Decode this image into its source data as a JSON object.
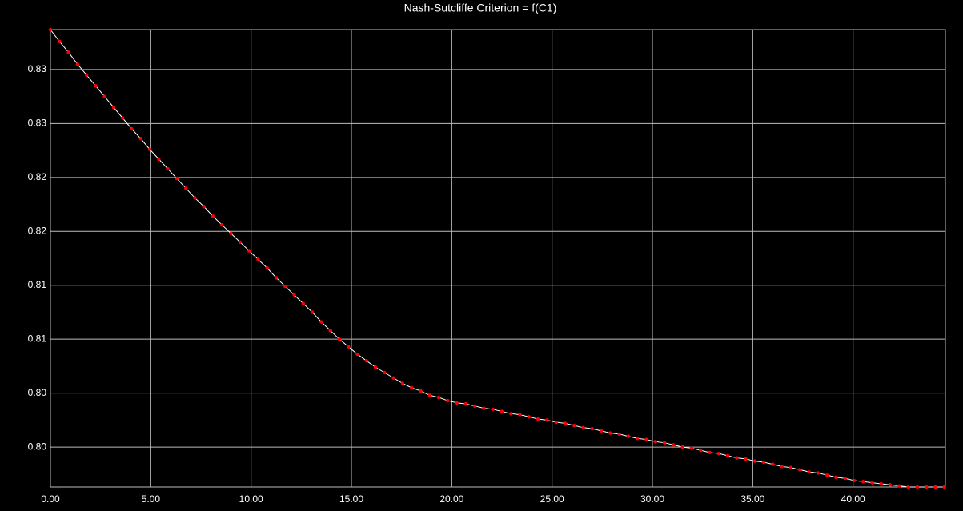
{
  "chart_data": {
    "type": "line",
    "title": "Nash-Sutcliffe Criterion = f(C1)",
    "x": [
      0,
      0.45,
      0.9,
      1.35,
      1.8,
      2.25,
      2.7,
      3.15,
      3.6,
      4.05,
      4.5,
      4.95,
      5.4,
      5.85,
      6.3,
      6.75,
      7.2,
      7.65,
      8.1,
      8.55,
      9,
      9.45,
      9.9,
      10.35,
      10.8,
      11.25,
      11.7,
      12.15,
      12.6,
      13.05,
      13.5,
      13.95,
      14.4,
      14.85,
      15.3,
      15.75,
      16.2,
      16.65,
      17.1,
      17.55,
      18,
      18.45,
      18.9,
      19.35,
      19.8,
      20.25,
      20.7,
      21.15,
      21.6,
      22.05,
      22.5,
      22.95,
      23.4,
      23.85,
      24.3,
      24.75,
      25.2,
      25.65,
      26.1,
      26.55,
      27,
      27.45,
      27.9,
      28.35,
      28.8,
      29.25,
      29.7,
      30.15,
      30.6,
      31.05,
      31.5,
      31.95,
      32.4,
      32.85,
      33.3,
      33.75,
      34.2,
      34.65,
      35.1,
      35.55,
      36,
      36.45,
      36.9,
      37.35,
      37.8,
      38.25,
      38.7,
      39.15,
      39.6,
      40.05,
      40.5,
      40.95,
      41.4,
      41.85,
      42.3,
      42.75,
      43.2,
      43.65,
      44.1,
      44.55
    ],
    "values": [
      0.8362,
      0.8351,
      0.8341,
      0.833,
      0.832,
      0.831,
      0.83,
      0.829,
      0.828,
      0.827,
      0.8261,
      0.8251,
      0.8242,
      0.8233,
      0.8224,
      0.8215,
      0.8206,
      0.8198,
      0.8189,
      0.8181,
      0.8173,
      0.8165,
      0.8157,
      0.8149,
      0.8141,
      0.8132,
      0.8124,
      0.8116,
      0.8108,
      0.81,
      0.8091,
      0.8083,
      0.8075,
      0.8068,
      0.8061,
      0.8055,
      0.8049,
      0.8044,
      0.8039,
      0.8034,
      0.803,
      0.8027,
      0.8023,
      0.8021,
      0.8018,
      0.8016,
      0.8015,
      0.8013,
      0.8011,
      0.801,
      0.8008,
      0.8006,
      0.8005,
      0.8003,
      0.8001,
      0.8,
      0.7998,
      0.7997,
      0.7995,
      0.7993,
      0.7992,
      0.799,
      0.7988,
      0.7987,
      0.7985,
      0.7983,
      0.7982,
      0.798,
      0.7979,
      0.7977,
      0.7975,
      0.7974,
      0.7972,
      0.797,
      0.7969,
      0.7967,
      0.7965,
      0.7964,
      0.7962,
      0.7961,
      0.7959,
      0.7957,
      0.7956,
      0.7954,
      0.7952,
      0.7951,
      0.7949,
      0.7947,
      0.7946,
      0.7944,
      0.7943,
      0.7942,
      0.7941,
      0.794,
      0.7939,
      0.7938,
      0.7938,
      0.7938,
      0.7938,
      0.7938
    ],
    "line_color": "#ffffff",
    "marker_color": "#ff0000",
    "xlim": [
      0,
      44.6
    ],
    "xticks": [
      {
        "value": 0,
        "label": "0.00"
      },
      {
        "value": 5,
        "label": "5.00"
      },
      {
        "value": 10,
        "label": "10.00"
      },
      {
        "value": 15,
        "label": "15.00"
      },
      {
        "value": 20,
        "label": "20.00"
      },
      {
        "value": 25,
        "label": "25.00"
      },
      {
        "value": 30,
        "label": "30.00"
      },
      {
        "value": 35,
        "label": "35.00"
      },
      {
        "value": 40,
        "label": "40.00"
      }
    ],
    "ylim": [
      0.7938,
      0.8362
    ],
    "yticks": [
      {
        "value": 0.7975,
        "label": "0.80"
      },
      {
        "value": 0.8025,
        "label": "0.80"
      },
      {
        "value": 0.8075,
        "label": "0.81"
      },
      {
        "value": 0.8125,
        "label": "0.81"
      },
      {
        "value": 0.8175,
        "label": "0.82"
      },
      {
        "value": 0.8225,
        "label": "0.82"
      },
      {
        "value": 0.8275,
        "label": "0.83"
      },
      {
        "value": 0.8325,
        "label": "0.83"
      }
    ],
    "grid": true
  }
}
